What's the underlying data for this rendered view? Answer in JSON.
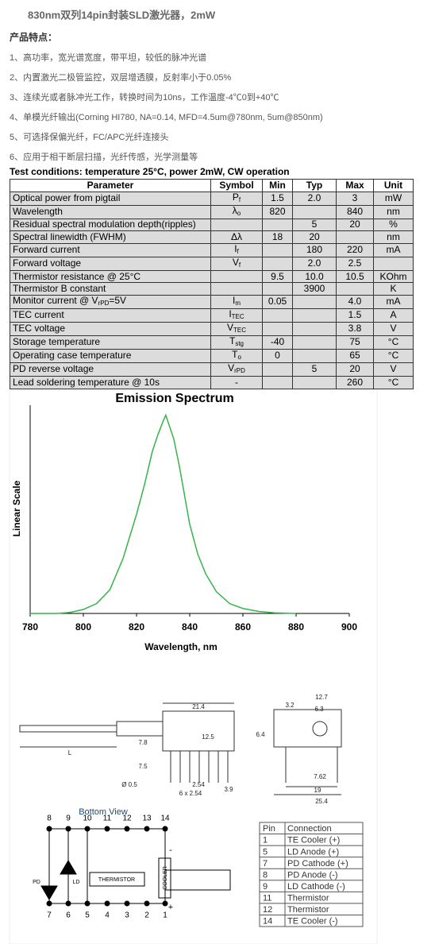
{
  "title": "830nm双列14pin封装SLD激光器，2mW",
  "features_heading": "产品特点：",
  "features": [
    "1、高功率，宽光谱宽度，带平坦，较低的脉冲光谱",
    "2、内置激光二极管监控，双层增透膜，反射率小于0.05%",
    "3、连续光或者脉冲光工作，转换时间为10ns，工作温度-4℃0到+40℃",
    "4、单模光纤输出(Corning HI780, NA=0.14, MFD=4.5um@780nm, 5um@850nm)",
    "5、可选择保偏光纤，FC/APC光纤连接头",
    "6、应用于相干断层扫描，光纤传感，光学测量等"
  ],
  "spec_table": {
    "caption": "Test conditions: temperature 25°C, power 2mW, CW operation",
    "header": [
      "Parameter",
      "Symbol",
      "Min",
      "Typ",
      "Max",
      "Unit"
    ],
    "rows": [
      [
        "Optical power from pigtail",
        {
          "base": "P",
          "sub": "f"
        },
        "1.5",
        "2.0",
        "3",
        "mW"
      ],
      [
        "Wavelength",
        {
          "base": "λ",
          "sub": "o"
        },
        "820",
        null,
        "840",
        "nm"
      ],
      [
        "Residual spectral modulation depth(ripples)",
        null,
        null,
        "5",
        "20",
        "%"
      ],
      [
        "Spectral linewidth (FWHM)",
        "Δλ",
        "18",
        "20",
        null,
        "nm"
      ],
      [
        "Forward current",
        {
          "base": "I",
          "sub": "f"
        },
        null,
        "180",
        "220",
        "mA"
      ],
      [
        "Forward voltage",
        {
          "base": "V",
          "sub": "f"
        },
        null,
        "2.0",
        "2.5",
        null
      ],
      [
        "Thermistor resistance @ 25°C",
        null,
        "9.5",
        "10.0",
        "10.5",
        "KOhm"
      ],
      [
        "Thermistor B constant",
        null,
        null,
        "3900",
        null,
        "K"
      ],
      [
        {
          "text": "Monitor current @ V",
          "sub": "rPD",
          "tail": "=5V"
        },
        {
          "base": "I",
          "sub": "m"
        },
        "0.05",
        null,
        "4.0",
        "mA"
      ],
      [
        "TEC current",
        {
          "base": "I",
          "sub": "TEC"
        },
        null,
        null,
        "1.5",
        "A"
      ],
      [
        "TEC voltage",
        {
          "base": "V",
          "sub": "TEC"
        },
        null,
        null,
        "3.8",
        "V"
      ],
      [
        "Storage temperature",
        {
          "base": "T",
          "sub": "stg"
        },
        "-40",
        null,
        "75",
        "°C"
      ],
      [
        "Operating case temperature",
        {
          "base": "T",
          "sub": "o"
        },
        "0",
        null,
        "65",
        "°C"
      ],
      [
        "PD reverse voltage",
        {
          "base": "V",
          "sub": "rPD"
        },
        null,
        "5",
        "20",
        "V"
      ],
      [
        "Lead soldering temperature @ 10s",
        "-",
        null,
        null,
        "260",
        "°C"
      ]
    ]
  },
  "spectrum": {
    "type": "line",
    "title": "Emission Spectrum",
    "x_label": "Wavelength, nm",
    "y_label": "Linear Scale",
    "x": [
      780,
      790,
      795,
      800,
      805,
      810,
      815,
      820,
      823,
      826,
      828,
      830,
      831,
      832,
      834,
      836,
      838,
      840,
      843,
      846,
      850,
      855,
      860,
      866,
      872,
      880
    ],
    "values": [
      0,
      0,
      0.005,
      0.02,
      0.05,
      0.12,
      0.28,
      0.5,
      0.65,
      0.82,
      0.9,
      0.97,
      1.0,
      0.96,
      0.88,
      0.75,
      0.6,
      0.45,
      0.3,
      0.2,
      0.11,
      0.05,
      0.025,
      0.01,
      0.003,
      0
    ],
    "color": "#33b54a",
    "xlim": [
      780,
      900
    ],
    "xticks": [
      780,
      800,
      820,
      840,
      860,
      880,
      900
    ],
    "ylim": [
      0,
      1.05
    ]
  },
  "package_drawing": {
    "dimensions": [
      "21.4",
      "12.5",
      "7.8",
      "7.5",
      "Ø 0.5",
      "2.54",
      "6 x 2.54",
      "3.9",
      "L",
      "12.7",
      "3.2",
      "6.3",
      "6.4",
      "7.62",
      "19",
      "25.4"
    ]
  },
  "bottom_view": {
    "title": "Bottom View",
    "top_pins": [
      "8",
      "9",
      "10",
      "11",
      "12",
      "13",
      "14"
    ],
    "bottom_pins": [
      "7",
      "6",
      "5",
      "4",
      "3",
      "2",
      "1"
    ],
    "labels": {
      "pd": "PD",
      "ld": "LD",
      "thermistor": "THERMISTOR",
      "cooler": "COOLER",
      "minus": "-",
      "plus": "+"
    }
  },
  "pin_table": {
    "header": [
      "Pin",
      "Connection"
    ],
    "rows": [
      [
        "1",
        "TE Cooler (+)"
      ],
      [
        "5",
        "LD Anode (+)"
      ],
      [
        "7",
        "PD Cathode (+)"
      ],
      [
        "8",
        "PD Anode (-)"
      ],
      [
        "9",
        "LD Cathode (-)"
      ],
      [
        "11",
        "Thermistor"
      ],
      [
        "12",
        "Thermistor"
      ],
      [
        "14",
        "TE Cooler (-)"
      ]
    ]
  }
}
